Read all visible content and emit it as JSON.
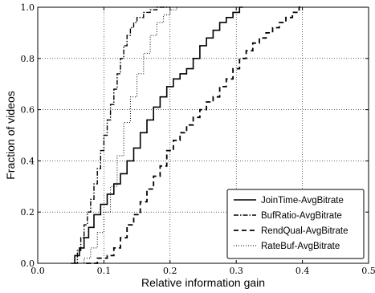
{
  "chart_data": {
    "type": "line",
    "xlabel": "Relative information gain",
    "ylabel": "Fraction of videos",
    "xlim": [
      0.0,
      0.5
    ],
    "ylim": [
      0.0,
      1.0
    ],
    "x_ticks": [
      "0.0",
      "0.1",
      "0.2",
      "0.3",
      "0.4",
      "0.5"
    ],
    "y_ticks": [
      "0.0",
      "0.2",
      "0.4",
      "0.6",
      "0.8",
      "1.0"
    ],
    "grid": true,
    "legend_position": "bottom-right",
    "series": [
      {
        "name": "JoinTime-AvgBitrate",
        "style": "solid",
        "x": [
          0.05,
          0.056,
          0.063,
          0.07,
          0.077,
          0.085,
          0.095,
          0.105,
          0.115,
          0.125,
          0.135,
          0.145,
          0.155,
          0.165,
          0.175,
          0.185,
          0.195,
          0.205,
          0.215,
          0.225,
          0.235,
          0.245,
          0.255,
          0.265,
          0.275,
          0.285,
          0.295,
          0.305,
          0.31
        ],
        "y": [
          0.0,
          0.03,
          0.06,
          0.1,
          0.14,
          0.19,
          0.23,
          0.27,
          0.31,
          0.35,
          0.4,
          0.45,
          0.51,
          0.56,
          0.61,
          0.65,
          0.69,
          0.72,
          0.74,
          0.76,
          0.8,
          0.85,
          0.88,
          0.91,
          0.94,
          0.96,
          0.98,
          1.0,
          1.0
        ]
      },
      {
        "name": "BufRatio-AvgBitrate",
        "style": "dashdot",
        "x": [
          0.055,
          0.06,
          0.065,
          0.07,
          0.075,
          0.08,
          0.085,
          0.09,
          0.095,
          0.1,
          0.105,
          0.11,
          0.115,
          0.12,
          0.125,
          0.13,
          0.135,
          0.14,
          0.145,
          0.15,
          0.16,
          0.17,
          0.18,
          0.19,
          0.2
        ],
        "y": [
          0.0,
          0.05,
          0.1,
          0.15,
          0.2,
          0.25,
          0.31,
          0.37,
          0.44,
          0.5,
          0.56,
          0.62,
          0.68,
          0.74,
          0.8,
          0.85,
          0.89,
          0.92,
          0.94,
          0.96,
          0.98,
          0.99,
          1.0,
          1.0,
          1.0
        ]
      },
      {
        "name": "RendQual-AvgBitrate",
        "style": "dashed",
        "x": [
          0.073,
          0.09,
          0.105,
          0.115,
          0.125,
          0.135,
          0.145,
          0.155,
          0.165,
          0.175,
          0.185,
          0.195,
          0.205,
          0.215,
          0.225,
          0.235,
          0.245,
          0.255,
          0.265,
          0.275,
          0.285,
          0.295,
          0.305,
          0.315,
          0.325,
          0.335,
          0.345,
          0.355,
          0.365,
          0.375,
          0.385,
          0.395,
          0.4
        ],
        "y": [
          0.0,
          0.02,
          0.03,
          0.06,
          0.1,
          0.15,
          0.19,
          0.24,
          0.29,
          0.34,
          0.38,
          0.44,
          0.48,
          0.51,
          0.54,
          0.57,
          0.6,
          0.63,
          0.65,
          0.69,
          0.72,
          0.76,
          0.8,
          0.83,
          0.86,
          0.88,
          0.9,
          0.92,
          0.94,
          0.96,
          0.98,
          1.0,
          1.0
        ]
      },
      {
        "name": "RateBuf-AvgBitrate",
        "style": "dotted",
        "x": [
          0.06,
          0.07,
          0.08,
          0.09,
          0.1,
          0.11,
          0.12,
          0.13,
          0.14,
          0.15,
          0.16,
          0.17,
          0.18,
          0.19,
          0.2,
          0.21,
          0.22,
          0.24,
          0.26,
          0.27
        ],
        "y": [
          0.0,
          0.02,
          0.06,
          0.12,
          0.2,
          0.3,
          0.42,
          0.55,
          0.65,
          0.74,
          0.82,
          0.89,
          0.94,
          0.97,
          0.99,
          1.0,
          1.0,
          1.0,
          1.0,
          1.0
        ]
      }
    ]
  }
}
